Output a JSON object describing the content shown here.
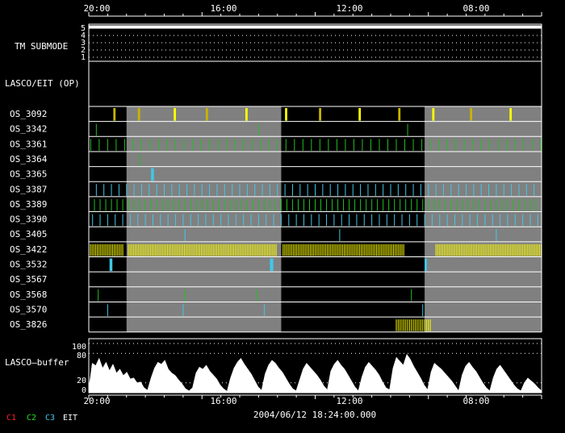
{
  "time_axis": {
    "tick_labels": [
      "20:00",
      "16:00",
      "12:00",
      "08:00"
    ],
    "timestamp": "2004/06/12 18:24:00.000"
  },
  "submode_panel": {
    "label": "TM SUBMODE",
    "levels": [
      "5",
      "4",
      "3",
      "2",
      "1"
    ]
  },
  "lasco_panel": {
    "label": "LASCO/EIT (OP)"
  },
  "buffer_panel": {
    "label": "LASCO–buffer",
    "ticks": [
      "100",
      "80",
      "20",
      "0"
    ]
  },
  "legend": [
    {
      "label": "C1",
      "color": "#ff2020"
    },
    {
      "label": "C2",
      "color": "#20e020"
    },
    {
      "label": "C3",
      "color": "#40c8e8"
    },
    {
      "label": "EIT",
      "color": "#ffffff"
    }
  ],
  "colors": {
    "background": "#000000",
    "gray_band": "#808080",
    "yellow": "#ffff00",
    "dark_yellow": "#c8b400",
    "green": "#20c020",
    "cyan": "#40c8e8",
    "white": "#ffffff"
  },
  "chart_data": {
    "type": "timeline",
    "x_range_hours": [
      0,
      24
    ],
    "gray_bands_hours": [
      [
        2.0,
        10.2
      ],
      [
        17.8,
        24
      ]
    ],
    "rows": [
      {
        "name": "OS_3092",
        "color": "yellow",
        "events": [
          [
            1.3,
            0.12,
            "d"
          ],
          [
            2.6,
            0.12,
            "d"
          ],
          [
            4.5,
            0.12,
            "y"
          ],
          [
            6.2,
            0.12,
            "d"
          ],
          [
            8.3,
            0.12,
            "y"
          ],
          [
            10.4,
            0.12,
            "y"
          ],
          [
            12.2,
            0.12,
            "d"
          ],
          [
            14.3,
            0.12,
            "y"
          ],
          [
            16.4,
            0.12,
            "d"
          ],
          [
            18.2,
            0.12,
            "y"
          ],
          [
            20.2,
            0.12,
            "d"
          ],
          [
            22.3,
            0.12,
            "y"
          ]
        ]
      },
      {
        "name": "OS_3342",
        "color": "green",
        "events": [
          0.4,
          9.0,
          16.9
        ]
      },
      {
        "name": "OS_3361",
        "color": "green",
        "period": 0.45,
        "start": 0.1,
        "end": 24
      },
      {
        "name": "OS_3364",
        "color": "green",
        "events": [
          2.7
        ]
      },
      {
        "name": "OS_3365",
        "color": "cyan",
        "events": [
          [
            3.3,
            0.15
          ]
        ]
      },
      {
        "name": "OS_3387",
        "color": "cyan",
        "period": 0.4,
        "start": 0.0,
        "end": 24
      },
      {
        "name": "OS_3389",
        "color": "green",
        "period": 0.3,
        "start": 0.0,
        "end": 24
      },
      {
        "name": "OS_3390",
        "color": "cyan",
        "period": 0.4,
        "start": 0.2,
        "end": 24
      },
      {
        "name": "OS_3405",
        "color": "cyan",
        "events": [
          5.1,
          13.3,
          21.6
        ]
      },
      {
        "name": "OS_3422",
        "color": "yellow",
        "period": 0.09,
        "start": 0,
        "end": 24,
        "blocks": [
          [
            0.0,
            1.8
          ],
          [
            2.1,
            10.0
          ],
          [
            10.3,
            16.7
          ],
          [
            18.4,
            24
          ]
        ]
      },
      {
        "name": "OS_3532",
        "color": "cyan",
        "events": [
          [
            1.1,
            0.15
          ],
          [
            9.6,
            0.18
          ],
          [
            17.8,
            0.12
          ]
        ]
      },
      {
        "name": "OS_3567",
        "color": "green",
        "events": []
      },
      {
        "name": "OS_3568",
        "color": "green",
        "events": [
          0.5,
          5.1,
          8.9,
          17.1
        ]
      },
      {
        "name": "OS_3570",
        "color": "cyan",
        "events": [
          1.0,
          5.0,
          9.3,
          17.7
        ]
      },
      {
        "name": "OS_3826",
        "color": "yellow",
        "period": 0.1,
        "start": 16.3,
        "end": 18.1
      }
    ],
    "buffer_percent": [
      8,
      60,
      55,
      70,
      50,
      62,
      45,
      58,
      40,
      48,
      35,
      42,
      28,
      30,
      20,
      22,
      10,
      5,
      30,
      50,
      62,
      58,
      66,
      48,
      40,
      35,
      26,
      18,
      8,
      4,
      10,
      40,
      52,
      48,
      56,
      44,
      36,
      28,
      16,
      8,
      3,
      30,
      50,
      62,
      70,
      58,
      48,
      38,
      25,
      12,
      5,
      38,
      56,
      66,
      60,
      50,
      42,
      30,
      18,
      8,
      4,
      26,
      48,
      60,
      52,
      44,
      36,
      26,
      14,
      6,
      44,
      58,
      66,
      56,
      48,
      36,
      24,
      12,
      4,
      32,
      52,
      62,
      54,
      46,
      36,
      22,
      10,
      6,
      50,
      72,
      64,
      56,
      78,
      68,
      54,
      42,
      30,
      16,
      6,
      42,
      60,
      54,
      48,
      40,
      32,
      24,
      14,
      4,
      36,
      54,
      62,
      52,
      44,
      32,
      20,
      10,
      4,
      30,
      48,
      56,
      46,
      36,
      26,
      16,
      8,
      4,
      20,
      30,
      24,
      18,
      10,
      4
    ],
    "buffer_ylim": [
      0,
      100
    ]
  }
}
